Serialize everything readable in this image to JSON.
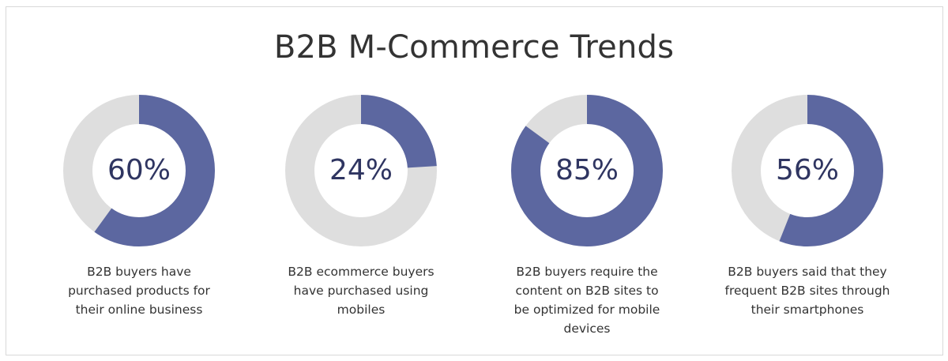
{
  "chart_data": {
    "type": "pie",
    "title": "B2B M-Commerce Trends",
    "colors": {
      "filled": "#5c67a0",
      "track": "#dedede",
      "text": "#2f3561"
    },
    "items": [
      {
        "value": 60,
        "label": "60%",
        "caption_lines": [
          "B2B buyers have",
          "purchased products for",
          "their online business"
        ]
      },
      {
        "value": 24,
        "label": "24%",
        "caption_lines": [
          "B2B ecommerce buyers",
          "have purchased using",
          "mobiles"
        ]
      },
      {
        "value": 85,
        "label": "85%",
        "caption_lines": [
          "B2B buyers require the",
          "content on B2B sites to",
          "be optimized for mobile",
          "devices"
        ]
      },
      {
        "value": 56,
        "label": "56%",
        "caption_lines": [
          "B2B buyers said that they",
          "frequent B2B sites through",
          "their smartphones"
        ]
      }
    ]
  }
}
